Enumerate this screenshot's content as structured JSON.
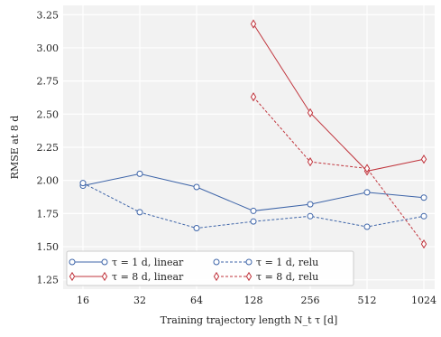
{
  "chart_data": {
    "type": "line",
    "title": "",
    "xlabel": "Training trajectory length N_t τ [d]",
    "ylabel": "RMSE at 8 d",
    "x_scale": "log2",
    "categories": [
      "16",
      "32",
      "64",
      "128",
      "256",
      "512",
      "1024"
    ],
    "x": [
      16,
      32,
      64,
      128,
      256,
      512,
      1024
    ],
    "ylim": [
      1.18,
      3.32
    ],
    "yticks": [
      "1.25",
      "1.50",
      "1.75",
      "2.00",
      "2.25",
      "2.50",
      "2.75",
      "3.00",
      "3.25"
    ],
    "grid": true,
    "legend_position": "bottom-left",
    "colors": {
      "blue": "#3d64a8",
      "red": "#c0343c",
      "background": "#f2f2f2",
      "grid": "#ffffff"
    },
    "series": [
      {
        "name": "τ = 1 d, linear",
        "color": "#3d64a8",
        "line_style": "solid",
        "marker": "circle",
        "x": [
          16,
          32,
          64,
          128,
          256,
          512,
          1024
        ],
        "values": [
          1.96,
          2.05,
          1.95,
          1.77,
          1.82,
          1.91,
          1.87
        ]
      },
      {
        "name": "τ = 1 d, relu",
        "color": "#3d64a8",
        "line_style": "dashed",
        "marker": "circle",
        "x": [
          16,
          32,
          64,
          128,
          256,
          512,
          1024
        ],
        "values": [
          1.98,
          1.76,
          1.64,
          1.69,
          1.73,
          1.65,
          1.73
        ]
      },
      {
        "name": "τ = 8 d, linear",
        "color": "#c0343c",
        "line_style": "solid",
        "marker": "diamond",
        "x": [
          128,
          256,
          512,
          1024
        ],
        "values": [
          3.18,
          2.51,
          2.07,
          2.16
        ]
      },
      {
        "name": "τ = 8 d, relu",
        "color": "#c0343c",
        "line_style": "dashed",
        "marker": "diamond",
        "x": [
          128,
          256,
          512,
          1024
        ],
        "values": [
          2.63,
          2.14,
          2.09,
          1.52
        ]
      }
    ]
  }
}
